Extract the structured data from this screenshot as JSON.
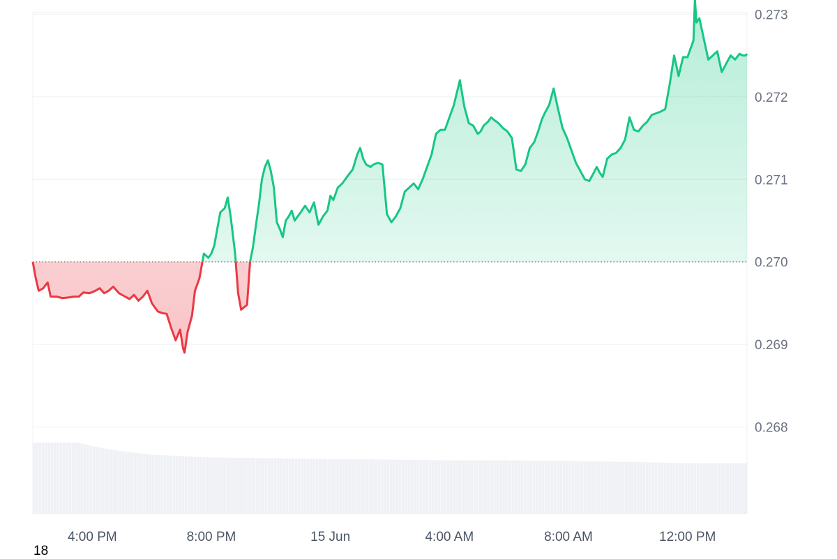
{
  "colors": {
    "up": "#16c784",
    "down": "#ea3943",
    "grid": "#eef0f3",
    "baseline": "#6b7280",
    "volume": "#eff1f5",
    "tick_text": "#6b7280"
  },
  "corner_label": "18",
  "chart_data": {
    "type": "line",
    "title": "",
    "xlabel": "",
    "ylabel": "",
    "baseline": 0.27,
    "ylim": [
      0.26695,
      0.27302
    ],
    "y_ticks": [
      "0.268",
      "0.269",
      "0.270",
      "0.271",
      "0.272",
      "0.273"
    ],
    "y_tick_values": [
      0.268,
      0.269,
      0.27,
      0.271,
      0.272,
      0.273
    ],
    "x_range_hours": [
      14.0,
      38.0
    ],
    "x_ticks": [
      {
        "hour": 16,
        "label": "4:00 PM"
      },
      {
        "hour": 20,
        "label": "8:00 PM"
      },
      {
        "hour": 24,
        "label": "15 Jun"
      },
      {
        "hour": 28,
        "label": "4:00 AM"
      },
      {
        "hour": 32,
        "label": "8:00 AM"
      },
      {
        "hour": 36,
        "label": "12:00 PM"
      }
    ],
    "series": [
      {
        "x": [
          14.0,
          14.1,
          14.2,
          14.35,
          14.5,
          14.6,
          14.8,
          15.0,
          15.2,
          15.4,
          15.55,
          15.7,
          15.9,
          16.1,
          16.25,
          16.4,
          16.55,
          16.7,
          16.9,
          17.1,
          17.25,
          17.4,
          17.55,
          17.7,
          17.85,
          18.0,
          18.1,
          18.2,
          18.35,
          18.5,
          18.65,
          18.8,
          18.95,
          19.05,
          19.1,
          19.2,
          19.35,
          19.45,
          19.6,
          19.75,
          19.9,
          20.0,
          20.1,
          20.2,
          20.3,
          20.45,
          20.55,
          20.65,
          20.8,
          20.9,
          21.0,
          21.2,
          21.3,
          21.4,
          21.5,
          21.6,
          21.7,
          21.8,
          21.9,
          22.0,
          22.1,
          22.2,
          22.3,
          22.4,
          22.5,
          22.6,
          22.7,
          22.8,
          22.9,
          23.0,
          23.15,
          23.3,
          23.45,
          23.6,
          23.75,
          23.9,
          24.0,
          24.1,
          24.25,
          24.4,
          24.5,
          24.6,
          24.75,
          24.9,
          25.0,
          25.05,
          25.1,
          25.2,
          25.35,
          25.45,
          25.6,
          25.75,
          25.9,
          26.05,
          26.2,
          26.35,
          26.5,
          26.65,
          26.8,
          26.95,
          27.1,
          27.25,
          27.4,
          27.55,
          27.7,
          27.85,
          28.0,
          28.15,
          28.25,
          28.35,
          28.5,
          28.65,
          28.8,
          28.95,
          29.05,
          29.15,
          29.3,
          29.4,
          29.5,
          29.65,
          29.8,
          29.95,
          30.1,
          30.25,
          30.4,
          30.55,
          30.7,
          30.85,
          31.0,
          31.1,
          31.2,
          31.35,
          31.5,
          31.65,
          31.8,
          31.95,
          32.1,
          32.25,
          32.4,
          32.55,
          32.7,
          32.85,
          32.95,
          33.05,
          33.15,
          33.2,
          33.3,
          33.45,
          33.6,
          33.75,
          33.9,
          34.05,
          34.2,
          34.35,
          34.5,
          34.65,
          34.8,
          34.95,
          35.1,
          35.25,
          35.4,
          35.55,
          35.7,
          35.85,
          36.0,
          36.1,
          36.2,
          36.25,
          36.3,
          36.4,
          36.55,
          36.7,
          36.85,
          37.0,
          37.15,
          37.3,
          37.45,
          37.6,
          37.75,
          37.85,
          37.95,
          38.0
        ],
        "y": [
          0.27,
          0.2698,
          0.26965,
          0.26968,
          0.26975,
          0.26958,
          0.26958,
          0.26956,
          0.26957,
          0.26958,
          0.26958,
          0.26963,
          0.26962,
          0.26965,
          0.26968,
          0.26962,
          0.26965,
          0.2697,
          0.26962,
          0.26958,
          0.26955,
          0.2696,
          0.26953,
          0.26958,
          0.26965,
          0.2695,
          0.26945,
          0.2694,
          0.26938,
          0.26937,
          0.2692,
          0.26905,
          0.26918,
          0.26895,
          0.2689,
          0.26915,
          0.26935,
          0.26965,
          0.2698,
          0.2701,
          0.27005,
          0.2701,
          0.2702,
          0.2704,
          0.2706,
          0.27065,
          0.27078,
          0.27055,
          0.2701,
          0.26962,
          0.26942,
          0.26948,
          0.27,
          0.27018,
          0.27045,
          0.2707,
          0.271,
          0.27115,
          0.27123,
          0.2711,
          0.2709,
          0.27048,
          0.2704,
          0.2703,
          0.2705,
          0.27055,
          0.27062,
          0.2705,
          0.27055,
          0.2706,
          0.27068,
          0.2706,
          0.27072,
          0.27045,
          0.27055,
          0.27062,
          0.2708,
          0.27075,
          0.2709,
          0.27095,
          0.271,
          0.27105,
          0.27112,
          0.2713,
          0.27138,
          0.27132,
          0.27125,
          0.27118,
          0.27115,
          0.27118,
          0.2712,
          0.27118,
          0.27058,
          0.27048,
          0.27055,
          0.27065,
          0.27085,
          0.2709,
          0.27095,
          0.27088,
          0.271,
          0.27115,
          0.2713,
          0.27155,
          0.2716,
          0.2716,
          0.27175,
          0.2719,
          0.27205,
          0.2722,
          0.27188,
          0.27168,
          0.27165,
          0.27155,
          0.27158,
          0.27165,
          0.2717,
          0.27175,
          0.27172,
          0.27168,
          0.27162,
          0.27158,
          0.2715,
          0.27112,
          0.2711,
          0.27118,
          0.27138,
          0.27145,
          0.2716,
          0.27172,
          0.2718,
          0.2719,
          0.2721,
          0.27185,
          0.27162,
          0.2715,
          0.27135,
          0.2712,
          0.2711,
          0.271,
          0.27098,
          0.27108,
          0.27115,
          0.27108,
          0.27103,
          0.2711,
          0.27125,
          0.2713,
          0.27132,
          0.27138,
          0.27148,
          0.27175,
          0.2716,
          0.27158,
          0.27165,
          0.2717,
          0.27178,
          0.2718,
          0.27182,
          0.27185,
          0.27215,
          0.2725,
          0.27225,
          0.27248,
          0.27248,
          0.27258,
          0.27268,
          0.27318,
          0.2729,
          0.27295,
          0.2727,
          0.27245,
          0.2725,
          0.27255,
          0.2723,
          0.2724,
          0.2725,
          0.27245,
          0.27252,
          0.2725,
          0.2725,
          0.27252
        ]
      }
    ],
    "volume": {
      "x": [
        14.0,
        15.5,
        16.0,
        17.0,
        18.0,
        19.0,
        20.0,
        22.0,
        24.0,
        26.0,
        28.0,
        30.0,
        32.0,
        34.0,
        35.0,
        36.0,
        38.0
      ],
      "values": [
        1.0,
        1.0,
        0.95,
        0.88,
        0.83,
        0.81,
        0.79,
        0.78,
        0.77,
        0.76,
        0.75,
        0.75,
        0.74,
        0.73,
        0.72,
        0.71,
        0.71
      ]
    }
  }
}
